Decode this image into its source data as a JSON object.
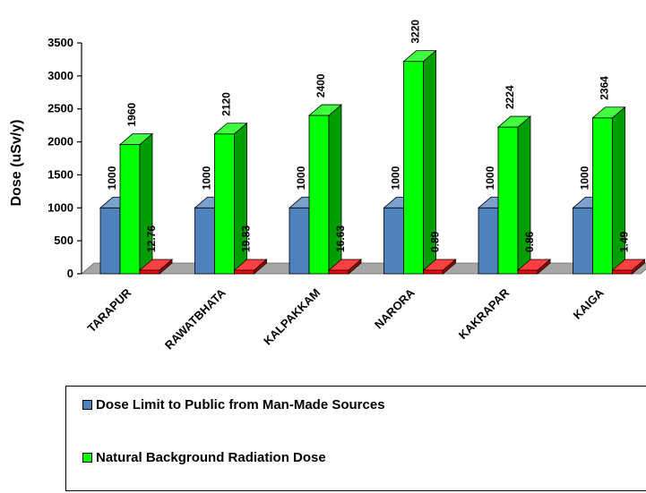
{
  "chart_data": {
    "type": "bar",
    "title": "",
    "xlabel": "",
    "ylabel": "Dose (uSv/y)",
    "ylim": [
      0,
      3500
    ],
    "yticks": [
      0,
      500,
      1000,
      1500,
      2000,
      2500,
      3000,
      3500
    ],
    "categories": [
      "TARAPUR",
      "RAWATBHATA",
      "KALPAKKAM",
      "NARORA",
      "KAKRAPAR",
      "KAIGA"
    ],
    "series": [
      {
        "name": "Dose Limit to Public from Man-Made Sources",
        "values": [
          1000,
          1000,
          1000,
          1000,
          1000,
          1000
        ],
        "labels": [
          "1000",
          "1000",
          "1000",
          "1000",
          "1000",
          "1000"
        ],
        "color": "#4f81bd"
      },
      {
        "name": "Natural Background Radiation Dose",
        "values": [
          1960,
          2120,
          2400,
          3220,
          2224,
          2364
        ],
        "labels": [
          "1960",
          "2120",
          "2400",
          "3220",
          "2224",
          "2364"
        ],
        "color": "#00ff00"
      },
      {
        "name": "",
        "values": [
          12.76,
          19.83,
          16.63,
          0.89,
          0.86,
          1.49
        ],
        "labels": [
          "12.76",
          "19.83",
          "16.63",
          "0.89",
          "0.86",
          "1.49"
        ],
        "color": "#ff0000"
      }
    ],
    "legend": {
      "placement": "bottom",
      "entries": [
        {
          "label": "Dose Limit to Public from Man-Made Sources",
          "color": "#4f81bd"
        },
        {
          "label": "Natural Background Radiation Dose",
          "color": "#00ff00"
        }
      ]
    },
    "grid": false
  }
}
